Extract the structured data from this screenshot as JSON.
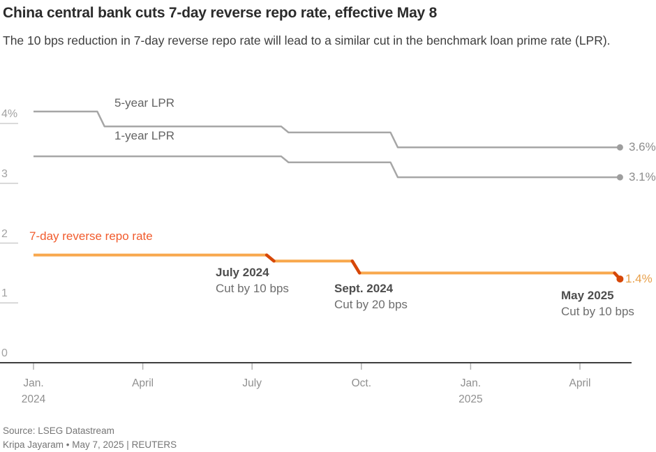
{
  "header": {
    "title": "China central bank cuts 7-day reverse repo rate, effective May 8",
    "subtitle": "The 10 bps reduction in 7-day reverse repo rate will lead to a similar cut in the benchmark loan prime rate (LPR)."
  },
  "chart_data": {
    "type": "line",
    "title": "China central bank cuts 7-day reverse repo rate, effective May 8",
    "x_unit": "months since Jan. 2024",
    "ylabel": "%",
    "ylim": [
      0,
      4.45
    ],
    "grid": false,
    "series": [
      {
        "name": "5-year LPR",
        "color": "#a6a6a6",
        "width": 2.5,
        "end_label": "3.6%",
        "end_dot_color": "#9e9e9e",
        "points": [
          [
            0,
            4.2
          ],
          [
            1.75,
            4.2
          ],
          [
            1.95,
            3.95
          ],
          [
            6.8,
            3.95
          ],
          [
            7.0,
            3.85
          ],
          [
            9.8,
            3.85
          ],
          [
            10.0,
            3.6
          ],
          [
            16.1,
            3.6
          ]
        ]
      },
      {
        "name": "1-year LPR",
        "color": "#a6a6a6",
        "width": 2.5,
        "end_label": "3.1%",
        "end_dot_color": "#9e9e9e",
        "points": [
          [
            0,
            3.45
          ],
          [
            6.8,
            3.45
          ],
          [
            7.0,
            3.35
          ],
          [
            9.8,
            3.35
          ],
          [
            10.0,
            3.1
          ],
          [
            16.1,
            3.1
          ]
        ]
      },
      {
        "name": "7-day reverse repo rate",
        "color": "#f8a84d",
        "width": 4,
        "end_label": "1.4%",
        "end_dot_color": "#d64708",
        "points": [
          [
            0,
            1.8
          ],
          [
            6.4,
            1.8
          ],
          [
            6.6,
            1.7
          ],
          [
            8.75,
            1.7
          ],
          [
            8.95,
            1.5
          ],
          [
            15.95,
            1.5
          ],
          [
            16.1,
            1.4
          ]
        ]
      }
    ],
    "step_highlights": {
      "color": "#d64708",
      "width": 4.5,
      "segments": [
        [
          [
            6.4,
            1.8
          ],
          [
            6.6,
            1.7
          ]
        ],
        [
          [
            8.75,
            1.7
          ],
          [
            8.95,
            1.5
          ]
        ],
        [
          [
            15.95,
            1.5
          ],
          [
            16.1,
            1.4
          ]
        ]
      ]
    },
    "y_ticks": [
      {
        "label": "4%",
        "value": 4
      },
      {
        "label": "3",
        "value": 3
      },
      {
        "label": "2",
        "value": 2
      },
      {
        "label": "1",
        "value": 1
      },
      {
        "label": "0",
        "value": 0
      }
    ],
    "x_ticks": [
      {
        "label": "Jan.",
        "sublabel": "2024",
        "month": 0
      },
      {
        "label": "April",
        "sublabel": "",
        "month": 3
      },
      {
        "label": "July",
        "sublabel": "",
        "month": 6
      },
      {
        "label": "Oct.",
        "sublabel": "",
        "month": 9
      },
      {
        "label": "Jan.",
        "sublabel": "2025",
        "month": 12
      },
      {
        "label": "April",
        "sublabel": "",
        "month": 15
      }
    ],
    "annotations": [
      {
        "title": "July 2024",
        "detail": "Cut by 10 bps"
      },
      {
        "title": "Sept. 2024",
        "detail": "Cut by 20 bps"
      },
      {
        "title": "May 2025",
        "detail": "Cut by 10 bps"
      }
    ],
    "event_values": {
      "repo_rate_path": [
        "1.8% to 1.7% (July 2024)",
        "1.7% to 1.5% (Sept. 2024)",
        "1.5% to 1.4% (May 2025)"
      ],
      "lpr_5y_path": [
        "4.2% to 3.95% (Feb. 2024)",
        "3.95% to 3.85% (July 2024)",
        "3.85% to 3.6% (Oct. 2024)"
      ],
      "lpr_1y_path": [
        "3.45% to 3.35% (July 2024)",
        "3.35% to 3.1% (Oct. 2024)"
      ]
    }
  },
  "footer": {
    "source": "Source: LSEG Datastream",
    "byline": "Kripa Jayaram • May 7, 2025 | REUTERS"
  }
}
